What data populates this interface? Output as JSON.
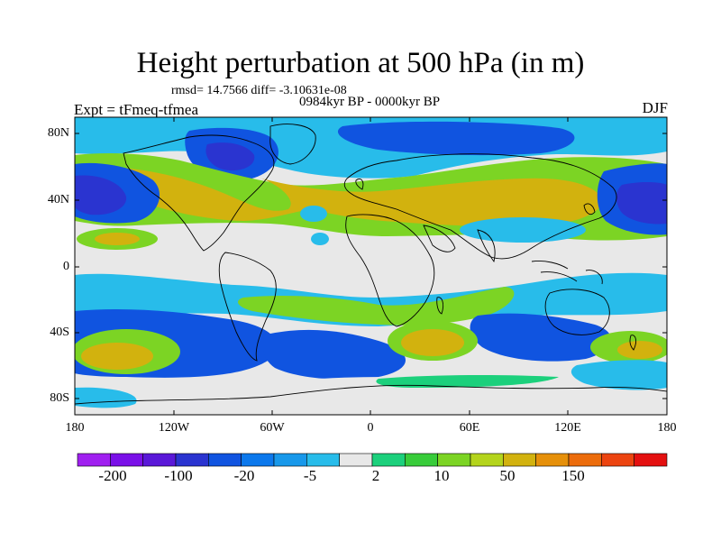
{
  "title": "Height perturbation at 500 hPa (in m)",
  "stats": "rmsd= 14.7566 diff= -3.10631e-08",
  "period": "0984kyr BP - 0000kyr BP",
  "experiment": "Expt = tFmeq-tfmea",
  "season": "DJF",
  "map": {
    "lat_ticks": [
      "80N",
      "40N",
      "0",
      "40S",
      "80S"
    ],
    "lon_ticks": [
      "180",
      "120W",
      "60W",
      "0",
      "60E",
      "120E",
      "180"
    ],
    "projection": "cylindrical equidistant",
    "lon_range": [
      -180,
      180
    ],
    "lat_range": [
      -90,
      90
    ]
  },
  "colorbar": {
    "labels": [
      "-200",
      "-100",
      "-20",
      "-5",
      "2",
      "10",
      "50",
      "150"
    ],
    "colors": [
      "#a020f0",
      "#7a10e8",
      "#5a18d8",
      "#2a34d0",
      "#1054e0",
      "#0c78ec",
      "#1898ea",
      "#28bcea",
      "#e8e8e8",
      "#1cd07c",
      "#38cc3a",
      "#7cd424",
      "#b4d41c",
      "#d2b20e",
      "#e6900a",
      "#ec6c0c",
      "#ec4410",
      "#e41010"
    ]
  },
  "colors": {
    "neutral": "#e8e8e8",
    "strong_negative": "#2a34d0",
    "negative": "#1054e0",
    "weak_negative": "#28bcea",
    "weak_positive": "#1cd07c",
    "positive": "#7cd424",
    "strong_positive": "#d2b20e"
  }
}
